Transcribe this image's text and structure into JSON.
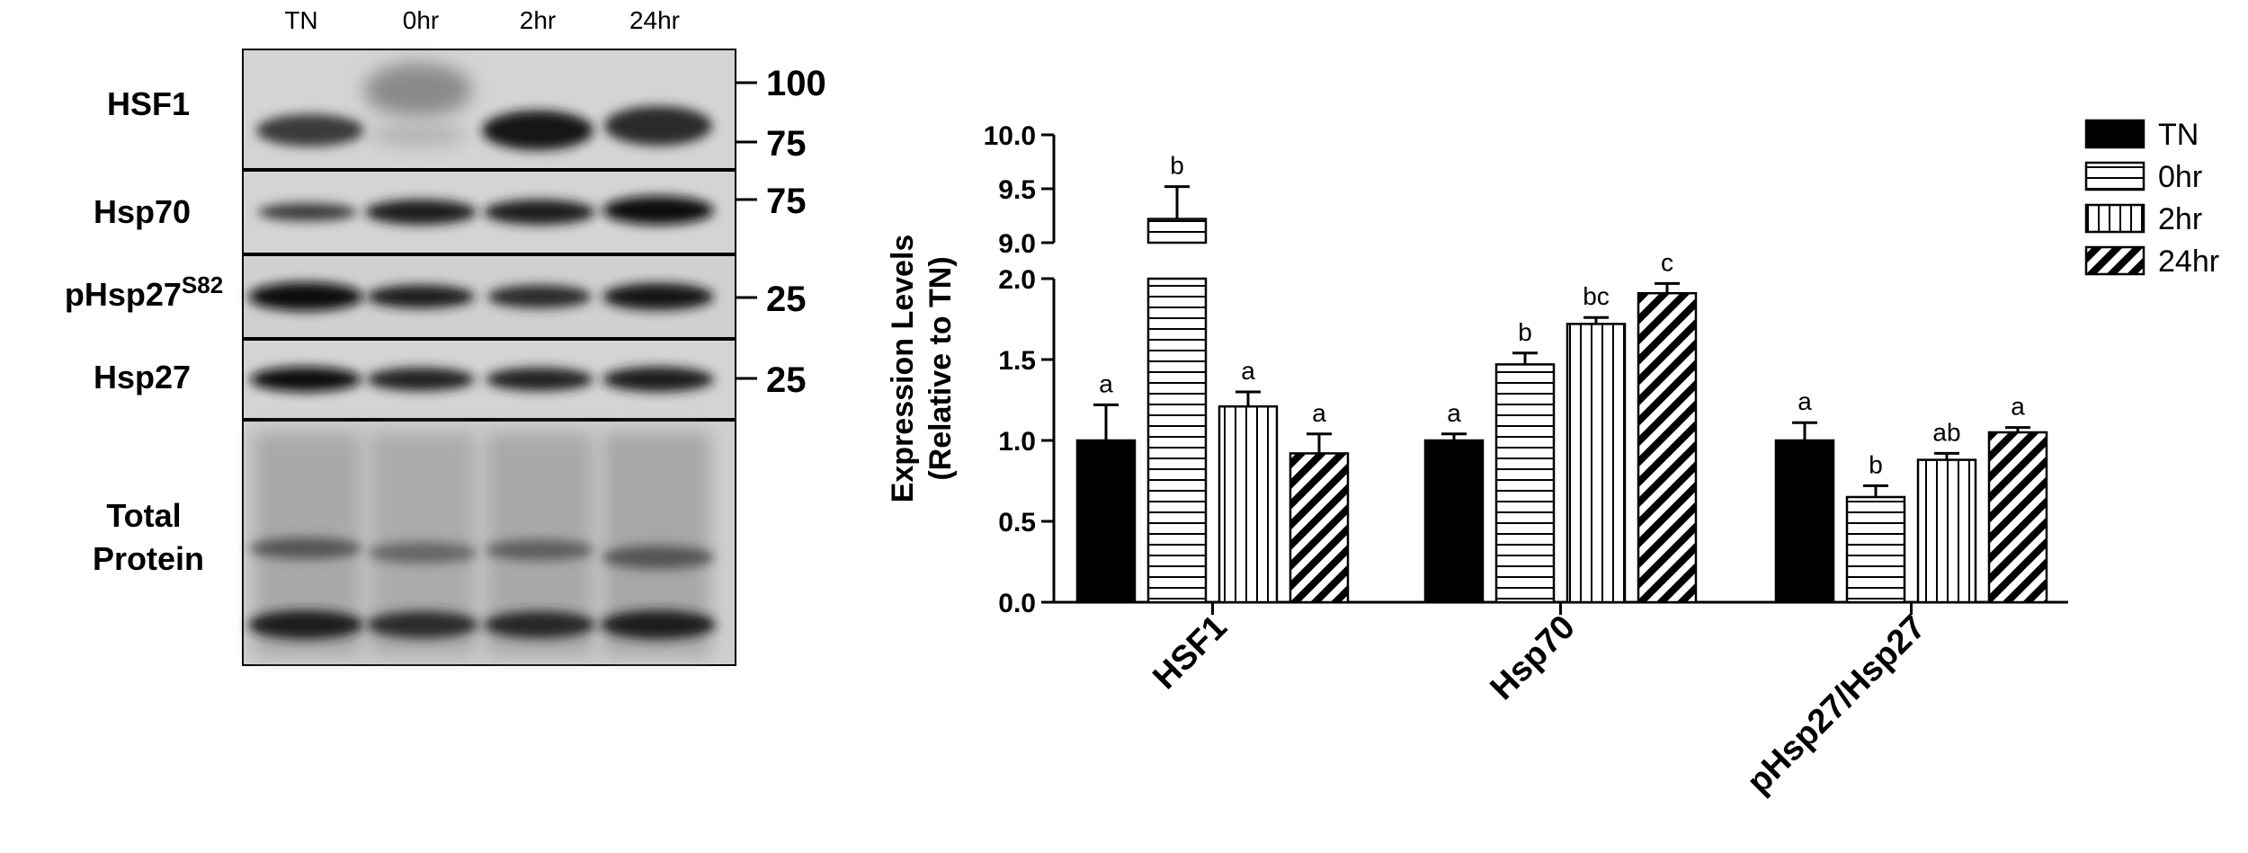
{
  "blot": {
    "lanes": [
      "TN",
      "0hr",
      "2hr",
      "24hr"
    ],
    "panels": [
      {
        "label": "HSF1",
        "sup": "",
        "markers": [
          "100",
          "75"
        ]
      },
      {
        "label": "Hsp70",
        "sup": "",
        "markers": [
          "75"
        ]
      },
      {
        "label": "pHsp27",
        "sup": "S82",
        "markers": [
          "25"
        ]
      },
      {
        "label": "Hsp27",
        "sup": "",
        "markers": [
          "25"
        ]
      },
      {
        "label": "Total Protein",
        "sup": "",
        "markers": []
      }
    ],
    "total_protein_lines": [
      "Total",
      "Protein"
    ]
  },
  "chart_data": {
    "type": "bar",
    "ylabel_lines": [
      "Expression Levels",
      "(Relative to TN)"
    ],
    "categories": [
      "HSF1",
      "Hsp70",
      "pHsp27/Hsp27"
    ],
    "series": [
      {
        "name": "TN",
        "pattern": "solid",
        "values": [
          1.0,
          1.0,
          1.0
        ],
        "errors": [
          0.22,
          0.04,
          0.11
        ],
        "letters": [
          "a",
          "a",
          "a"
        ]
      },
      {
        "name": "0hr",
        "pattern": "horizontal",
        "values": [
          9.22,
          1.47,
          0.65
        ],
        "errors": [
          0.3,
          0.07,
          0.07
        ],
        "letters": [
          "b",
          "b",
          "b"
        ]
      },
      {
        "name": "2hr",
        "pattern": "vertical",
        "values": [
          1.21,
          1.72,
          0.88
        ],
        "errors": [
          0.09,
          0.04,
          0.04
        ],
        "letters": [
          "a",
          "bc",
          "ab"
        ]
      },
      {
        "name": "24hr",
        "pattern": "diagonal",
        "values": [
          0.92,
          1.91,
          1.05
        ],
        "errors": [
          0.12,
          0.06,
          0.03
        ],
        "letters": [
          "a",
          "c",
          "a"
        ]
      }
    ],
    "lower_axis": {
      "ylim": [
        0.0,
        2.0
      ],
      "ticks": [
        "0.0",
        "0.5",
        "1.0",
        "1.5",
        "2.0"
      ]
    },
    "upper_axis": {
      "ylim": [
        9.0,
        10.0
      ],
      "ticks": [
        "9.0",
        "9.5",
        "10.0"
      ]
    },
    "axis_break": true,
    "legend_position": "top-right",
    "grid": false
  }
}
